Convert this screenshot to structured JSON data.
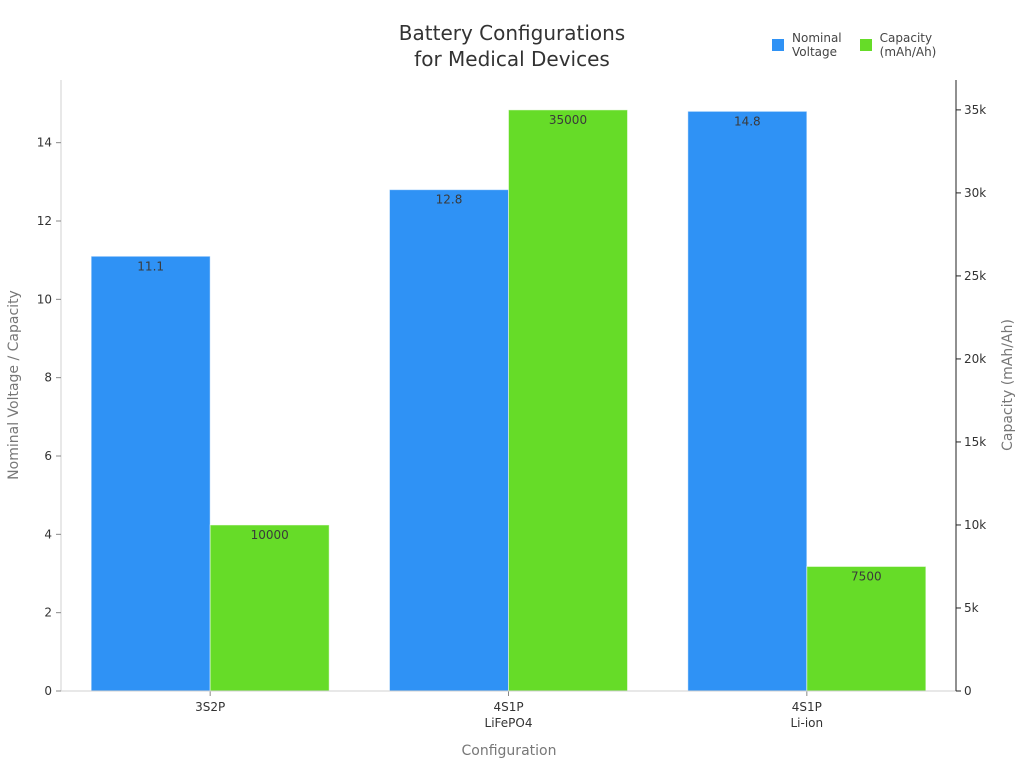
{
  "chart_data": {
    "type": "bar",
    "title": "Battery Configurations for Medical Devices",
    "title_lines": [
      "Battery Configurations",
      "for Medical Devices"
    ],
    "categories": [
      "3S2P",
      "4S1P\nLiFePO4",
      "4S1P\nLi-ion"
    ],
    "category_lines": [
      [
        "3S2P"
      ],
      [
        "4S1P",
        "LiFePO4"
      ],
      [
        "4S1P",
        "Li-ion"
      ]
    ],
    "xlabel": "Configuration",
    "ylabel": "Nominal Voltage / Capacity",
    "ylabel_right": "Capacity (mAh/Ah)",
    "series": [
      {
        "name": "Nominal Voltage",
        "axis": "left",
        "color": "#2f92f5",
        "values": [
          11.1,
          12.8,
          14.8
        ],
        "labels": [
          "11.1",
          "12.8",
          "14.8"
        ]
      },
      {
        "name": "Capacity (mAh/Ah)",
        "axis": "right",
        "color": "#66dc28",
        "values": [
          10000,
          35000,
          7500
        ],
        "labels": [
          "10000",
          "35000",
          "7500"
        ]
      }
    ],
    "ylim": [
      0,
      15.6
    ],
    "ylim_right": [
      0,
      36800
    ],
    "yticks": [
      0,
      2,
      4,
      6,
      8,
      10,
      12,
      14
    ],
    "yticks_right": [
      0,
      5000,
      10000,
      15000,
      20000,
      25000,
      30000,
      35000
    ],
    "yticks_right_labels": [
      "0",
      "5k",
      "10k",
      "15k",
      "20k",
      "25k",
      "30k",
      "35k"
    ],
    "legend_position": "top-right",
    "grid": false
  },
  "legend": {
    "items": [
      {
        "label": "Nominal\nVoltage",
        "color": "#2f92f5"
      },
      {
        "label": "Capacity\n(mAh/Ah)",
        "color": "#66dc28"
      }
    ]
  }
}
